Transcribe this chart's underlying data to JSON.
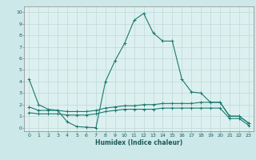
{
  "xlabel": "Humidex (Indice chaleur)",
  "bg_color": "#cce8e8",
  "plot_bg_color": "#ddf0f0",
  "grid_color": "#c0d8d8",
  "line_color": "#1a7a6e",
  "xlim": [
    -0.5,
    23.5
  ],
  "ylim": [
    -0.3,
    10.5
  ],
  "xticks": [
    0,
    1,
    2,
    3,
    4,
    5,
    6,
    7,
    8,
    9,
    10,
    11,
    12,
    13,
    14,
    15,
    16,
    17,
    18,
    19,
    20,
    21,
    22,
    23
  ],
  "yticks": [
    0,
    1,
    2,
    3,
    4,
    5,
    6,
    7,
    8,
    9,
    10
  ],
  "series1_x": [
    0,
    1,
    2,
    3,
    4,
    5,
    6,
    7,
    8,
    9,
    10,
    11,
    12,
    13,
    14,
    15,
    16,
    17,
    18,
    19,
    20,
    21,
    22,
    23
  ],
  "series1_y": [
    4.2,
    2.0,
    1.6,
    1.5,
    0.5,
    0.1,
    0.05,
    0.0,
    4.0,
    5.8,
    7.3,
    9.3,
    9.9,
    8.2,
    7.5,
    7.5,
    4.2,
    3.1,
    3.0,
    2.2,
    2.2,
    1.0,
    1.0,
    0.4
  ],
  "series2_x": [
    0,
    1,
    2,
    3,
    4,
    5,
    6,
    7,
    8,
    9,
    10,
    11,
    12,
    13,
    14,
    15,
    16,
    17,
    18,
    19,
    20,
    21,
    22,
    23
  ],
  "series2_y": [
    1.8,
    1.5,
    1.5,
    1.5,
    1.4,
    1.4,
    1.4,
    1.5,
    1.7,
    1.8,
    1.9,
    1.9,
    2.0,
    2.0,
    2.1,
    2.1,
    2.1,
    2.1,
    2.2,
    2.2,
    2.2,
    1.0,
    1.0,
    0.4
  ],
  "series3_x": [
    0,
    1,
    2,
    3,
    4,
    5,
    6,
    7,
    8,
    9,
    10,
    11,
    12,
    13,
    14,
    15,
    16,
    17,
    18,
    19,
    20,
    21,
    22,
    23
  ],
  "series3_y": [
    1.3,
    1.2,
    1.2,
    1.2,
    1.1,
    1.1,
    1.1,
    1.2,
    1.4,
    1.5,
    1.6,
    1.6,
    1.6,
    1.6,
    1.7,
    1.7,
    1.7,
    1.7,
    1.7,
    1.7,
    1.7,
    0.8,
    0.8,
    0.2
  ]
}
